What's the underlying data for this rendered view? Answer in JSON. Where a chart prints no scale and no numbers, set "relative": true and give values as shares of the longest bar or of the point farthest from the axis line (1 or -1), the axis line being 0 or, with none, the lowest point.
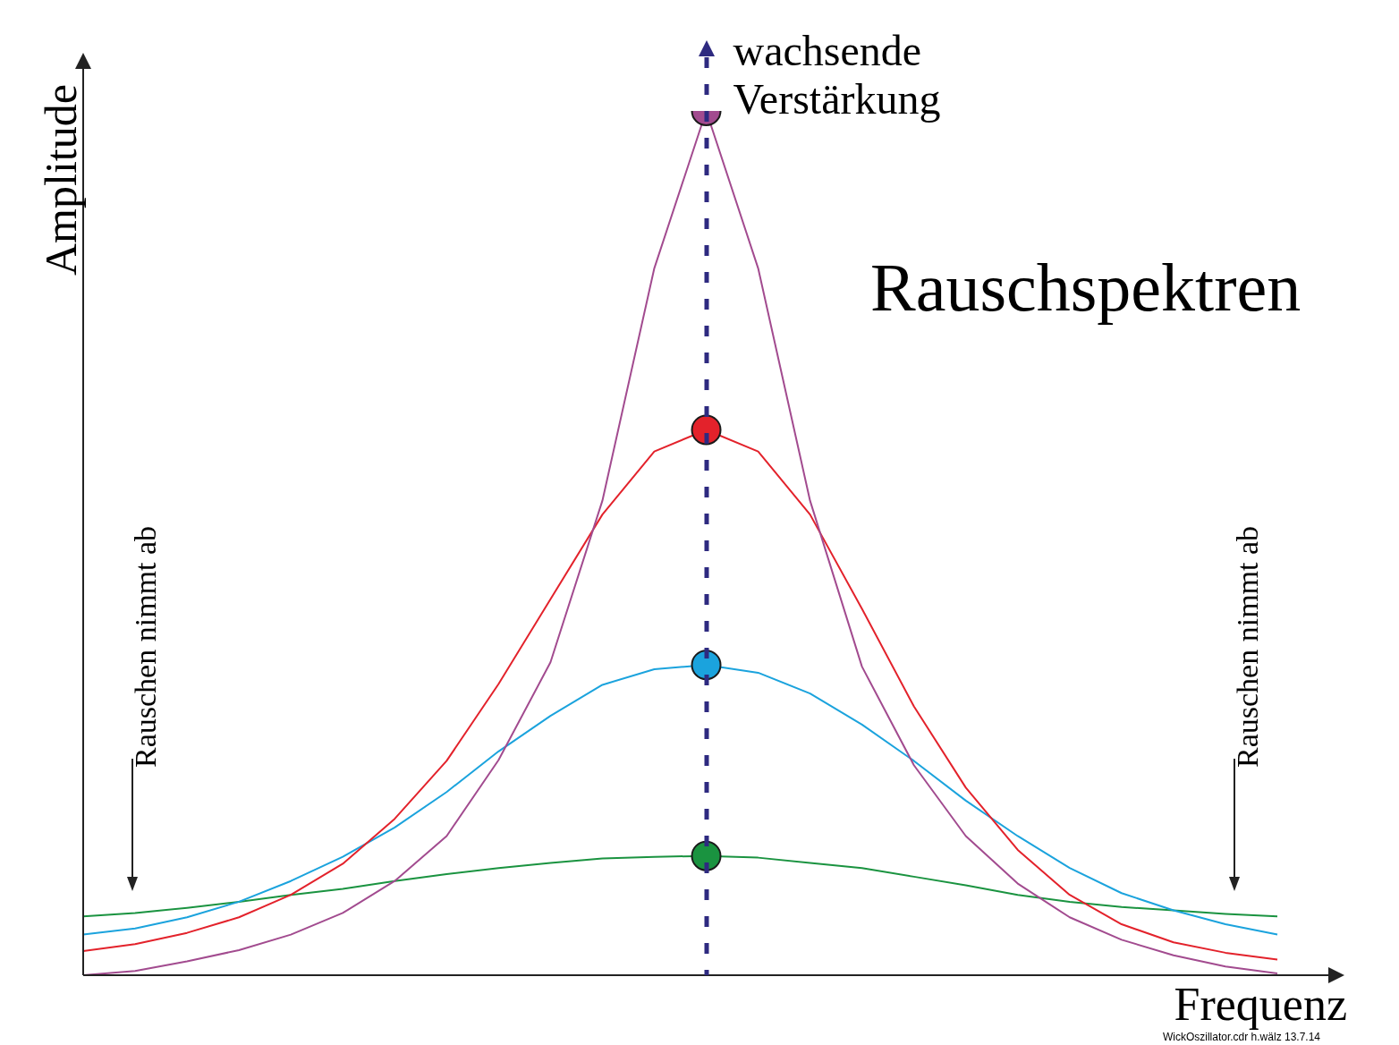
{
  "chart_data": {
    "type": "line",
    "relative": true,
    "title": "Rauschspektren",
    "xlabel": "Frequenz",
    "ylabel": "Amplitude",
    "annotations": [
      "wachsende Verstärkung",
      "Rauschen nimmt ab",
      "Rauschen nimmt ab",
      "WickOszillator.cdr h.wälz 13.7.14"
    ],
    "categories": [
      null,
      null,
      null,
      null,
      null,
      null,
      null,
      null,
      null,
      null,
      null,
      null,
      null,
      null,
      null,
      null,
      null,
      null,
      null,
      null,
      null,
      null,
      null,
      null
    ],
    "line_style": "solid",
    "grid": false,
    "legend": false,
    "series": [
      {
        "color": "#a24b8f",
        "values": [
          0,
          0.005,
          0.016,
          0.029,
          0.047,
          0.072,
          0.109,
          0.161,
          0.249,
          0.362,
          0.549,
          0.818,
          1,
          0.818,
          0.549,
          0.357,
          0.243,
          0.161,
          0.106,
          0.067,
          0.041,
          0.023,
          0.01,
          0.002
        ]
      },
      {
        "color": "#e3222b",
        "values": [
          0.028,
          0.036,
          0.049,
          0.067,
          0.093,
          0.129,
          0.181,
          0.248,
          0.337,
          0.435,
          0.533,
          0.606,
          0.631,
          0.606,
          0.533,
          0.424,
          0.311,
          0.217,
          0.145,
          0.093,
          0.059,
          0.038,
          0.026,
          0.018
        ]
      },
      {
        "color": "#1ba3dd",
        "values": [
          0.047,
          0.054,
          0.067,
          0.085,
          0.109,
          0.137,
          0.171,
          0.212,
          0.259,
          0.3,
          0.336,
          0.354,
          0.359,
          0.35,
          0.326,
          0.29,
          0.248,
          0.202,
          0.161,
          0.124,
          0.095,
          0.075,
          0.059,
          0.047
        ]
      },
      {
        "color": "#1a9340",
        "values": [
          0.068,
          0.072,
          0.078,
          0.085,
          0.093,
          0.1,
          0.109,
          0.117,
          0.124,
          0.13,
          0.135,
          0.137,
          0.138,
          0.136,
          0.13,
          0.124,
          0.114,
          0.104,
          0.093,
          0.085,
          0.079,
          0.075,
          0.071,
          0.068
        ]
      }
    ]
  }
}
